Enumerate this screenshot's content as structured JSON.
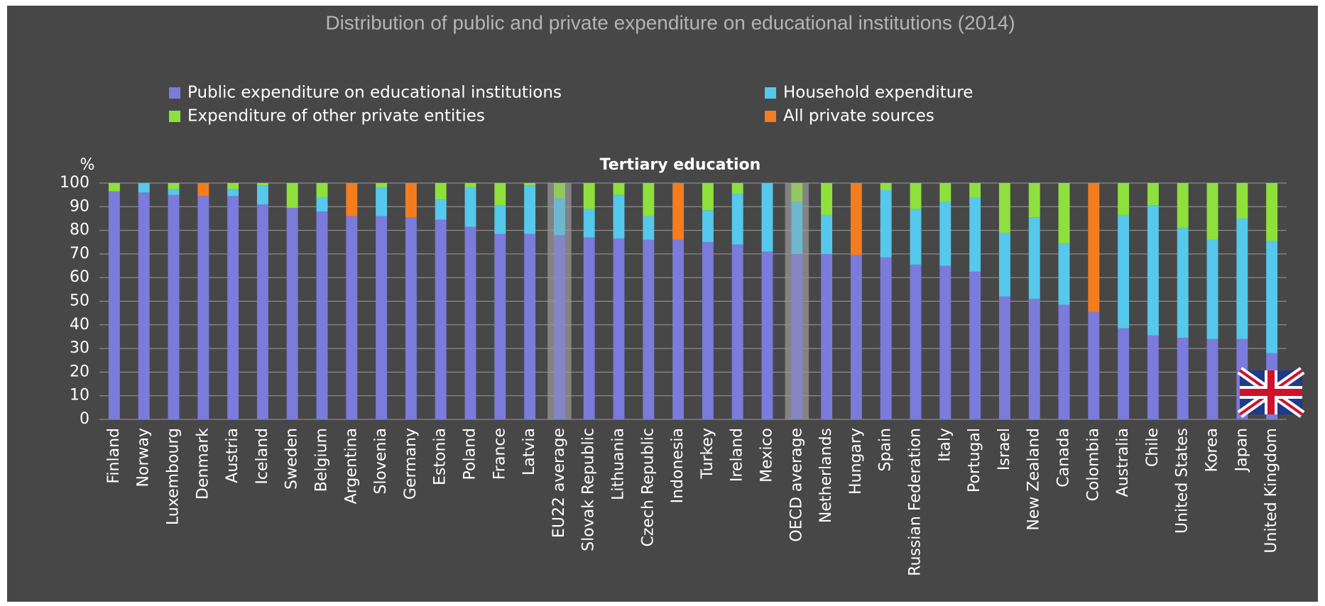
{
  "chart_data": {
    "type": "stacked_bar",
    "title": "Distribution of public and private expenditure on educational institutions (2014)",
    "subtitle": "Tertiary education",
    "y_label": "%",
    "categories": [
      "Finland",
      "Norway",
      "Luxembourg",
      "Denmark",
      "Austria",
      "Iceland",
      "Sweden",
      "Belgium",
      "Argentina",
      "Slovenia",
      "Germany",
      "Estonia",
      "Poland",
      "France",
      "Latvia",
      "EU22 average",
      "Slovak Republic",
      "Lithuania",
      "Czech Republic",
      "Indonesia",
      "Turkey",
      "Ireland",
      "Mexico",
      "OECD average",
      "Netherlands",
      "Hungary",
      "Spain",
      "Russian Federation",
      "Italy",
      "Portugal",
      "Israel",
      "New Zealand",
      "Canada",
      "Colombia",
      "Australia",
      "Chile",
      "United States",
      "Korea",
      "Japan",
      "United Kingdom"
    ],
    "series": [
      {
        "name": "Public expenditure on educational institutions",
        "color": "#7b7bdc",
        "values": [
          96.5,
          96,
          95,
          94.5,
          94.5,
          91,
          89.5,
          88,
          86,
          86,
          85.5,
          84.5,
          81.5,
          78.5,
          78.5,
          78,
          77,
          76.5,
          76,
          76,
          75,
          74,
          71,
          70,
          70,
          69.5,
          68.5,
          65.5,
          65,
          62.5,
          52,
          51,
          48.5,
          45.5,
          38.5,
          35.5,
          34.5,
          34,
          34,
          28
        ]
      },
      {
        "name": "Household expenditure",
        "color": "#55c8ec",
        "values": [
          null,
          4,
          2.5,
          null,
          3,
          8,
          null,
          6,
          null,
          12,
          null,
          8.5,
          16.5,
          12,
          20.5,
          15.5,
          12,
          18.5,
          10,
          null,
          13.5,
          21.5,
          29,
          22,
          16.5,
          null,
          28.5,
          23.5,
          27,
          31.5,
          27,
          34.5,
          26,
          null,
          48,
          55,
          46.5,
          42,
          51,
          47.5
        ]
      },
      {
        "name": "Expenditure of other private entities",
        "color": "#8ee03c",
        "values": [
          3.5,
          null,
          2.5,
          null,
          2.5,
          1,
          10.5,
          6,
          null,
          2,
          null,
          7,
          2,
          9.5,
          1,
          6.5,
          11,
          5,
          14,
          null,
          11.5,
          4.5,
          null,
          8,
          13.5,
          null,
          3,
          11,
          8,
          6,
          21,
          14.5,
          25.5,
          null,
          13.5,
          9.5,
          19,
          24,
          15,
          24.5
        ]
      },
      {
        "name": "All private sources",
        "color": "#f47d20",
        "values": [
          null,
          null,
          null,
          5.5,
          null,
          null,
          null,
          null,
          14,
          null,
          14.5,
          null,
          null,
          null,
          null,
          null,
          null,
          null,
          null,
          24,
          null,
          null,
          null,
          null,
          null,
          30.5,
          null,
          null,
          null,
          null,
          null,
          null,
          null,
          54.5,
          null,
          null,
          null,
          null,
          null,
          null
        ]
      }
    ],
    "highlight": [
      15,
      23
    ],
    "ylim": [
      0,
      100
    ],
    "yticks": [
      0,
      10,
      20,
      30,
      40,
      50,
      60,
      70,
      80,
      90,
      100
    ],
    "grid": true
  }
}
